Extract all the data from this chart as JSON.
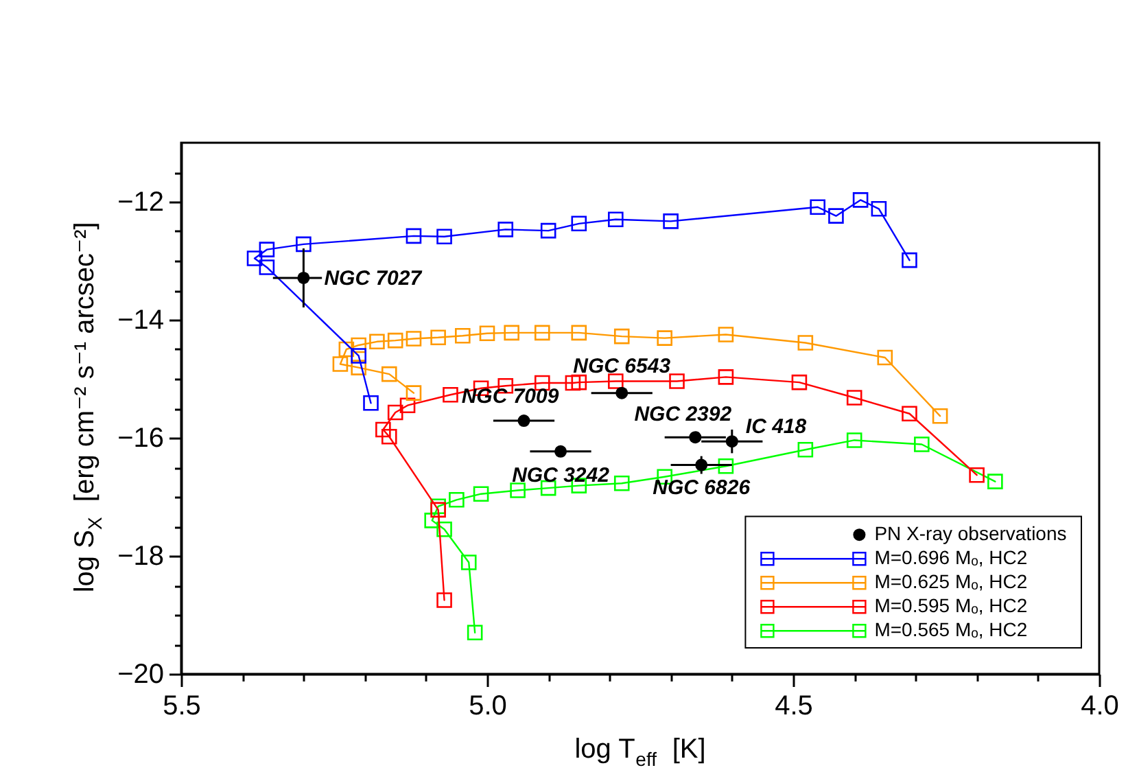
{
  "chart_data": {
    "type": "line",
    "xlabel": "log T$_{eff}$  [K]",
    "ylabel": "log S$_{X}$  [erg cm⁻² s⁻¹ arcsec⁻²]",
    "xlim": [
      5.5,
      4.0
    ],
    "ylim": [
      -20,
      -11
    ],
    "xticks": [
      5.5,
      {
        "value": 5.4,
        "label": null
      },
      {
        "value": 5.3,
        "label": null
      },
      {
        "value": 5.2,
        "label": null
      },
      {
        "value": 5.1,
        "label": null
      },
      {
        "value": 5,
        "label": "5.0"
      },
      {
        "value": 4.9,
        "label": null
      },
      {
        "value": 4.8,
        "label": null
      },
      {
        "value": 4.7,
        "label": null
      },
      {
        "value": 4.6,
        "label": null
      },
      4.5,
      {
        "value": 4.4,
        "label": null
      },
      {
        "value": 4.3,
        "label": null
      },
      {
        "value": 4.2,
        "label": null
      },
      {
        "value": 4.1,
        "label": null
      },
      {
        "value": 4,
        "label": "4.0"
      }
    ],
    "yticks": [
      -20,
      {
        "value": -19.5,
        "label": null
      },
      {
        "value": -19,
        "label": null
      },
      {
        "value": -18.5,
        "label": null
      },
      -18,
      {
        "value": -17.5,
        "label": null
      },
      {
        "value": -17,
        "label": null
      },
      {
        "value": -16.5,
        "label": null
      },
      -16,
      {
        "value": -15.5,
        "label": null
      },
      {
        "value": -15,
        "label": null
      },
      {
        "value": -14.5,
        "label": null
      },
      -14,
      {
        "value": -13.5,
        "label": null
      },
      {
        "value": -13,
        "label": null
      },
      {
        "value": -12.5,
        "label": null
      },
      -12,
      {
        "value": -11.5,
        "label": null
      }
    ],
    "legend": "bottom right",
    "series": [
      {
        "name": "PN X-ray observations",
        "type": "scatter",
        "marker": "circle",
        "color": "#000000",
        "x": [
          5.3,
          4.94,
          4.78,
          4.66,
          4.6,
          4.88,
          4.65
        ],
        "values": [
          -13.29,
          -15.71,
          -15.24,
          -15.99,
          -16.06,
          -16.23,
          -16.46
        ],
        "xerrors": [
          [
            5.27,
            5.35
          ],
          0.05,
          0.05,
          0.05,
          0.05,
          0.05,
          0.05
        ],
        "errors": [
          0.5,
          null,
          null,
          null,
          0.2,
          null,
          0.15
        ]
      },
      {
        "name": "M=0.696 Mₒ, HC2",
        "marker": "square",
        "color": "#0000ff",
        "x": [
          4.31,
          4.36,
          4.39,
          4.43,
          4.46,
          4.7,
          4.79,
          4.85,
          4.9,
          4.97,
          5.07,
          5.12,
          5.3,
          5.36,
          5.38,
          5.36,
          5.21,
          5.19
        ],
        "values": [
          -12.99,
          -12.12,
          -11.97,
          -12.24,
          -12.09,
          -12.33,
          -12.3,
          -12.37,
          -12.49,
          -12.47,
          -12.59,
          -12.58,
          -12.72,
          -12.81,
          -12.96,
          -13.11,
          -14.61,
          -15.41
        ]
      },
      {
        "name": "M=0.625 Mₒ, HC2",
        "marker": "square",
        "color": "#ff9900",
        "x": [
          4.26,
          4.35,
          4.48,
          4.61,
          4.71,
          4.78,
          4.85,
          4.91,
          4.96,
          5.0,
          5.04,
          5.08,
          5.12,
          5.15,
          5.18,
          5.21,
          5.23,
          5.24,
          5.21,
          5.16,
          5.12
        ],
        "values": [
          -15.63,
          -14.64,
          -14.39,
          -14.25,
          -14.31,
          -14.28,
          -14.22,
          -14.22,
          -14.22,
          -14.23,
          -14.27,
          -14.3,
          -14.32,
          -14.35,
          -14.37,
          -14.43,
          -14.5,
          -14.75,
          -14.81,
          -14.92,
          -15.24
        ]
      },
      {
        "name": "M=0.595 Mₒ, HC2",
        "marker": "square",
        "color": "#ff0000",
        "x": [
          4.2,
          4.31,
          4.4,
          4.49,
          4.61,
          4.69,
          4.79,
          4.85,
          4.86,
          4.91,
          4.97,
          5.01,
          5.06,
          5.13,
          5.15,
          5.17,
          5.16,
          5.08,
          5.07
        ],
        "values": [
          -16.63,
          -15.59,
          -15.32,
          -15.06,
          -14.97,
          -15.04,
          -15.04,
          -15.06,
          -15.07,
          -15.07,
          -15.12,
          -15.16,
          -15.27,
          -15.45,
          -15.57,
          -15.86,
          -15.98,
          -17.22,
          -18.75
        ]
      },
      {
        "name": "M=0.565 Mₒ, HC2",
        "marker": "square",
        "color": "#00ff00",
        "x": [
          4.17,
          4.29,
          4.4,
          4.48,
          4.61,
          4.71,
          4.78,
          4.85,
          4.9,
          4.95,
          5.01,
          5.05,
          5.08,
          5.09,
          5.07,
          5.03,
          5.02
        ],
        "values": [
          -16.74,
          -16.11,
          -16.04,
          -16.2,
          -16.48,
          -16.66,
          -16.77,
          -16.81,
          -16.85,
          -16.89,
          -16.95,
          -17.05,
          -17.16,
          -17.4,
          -17.55,
          -18.11,
          -19.3
        ]
      }
    ],
    "annotations": [
      {
        "text": "NGC 7027",
        "x": 5.3,
        "y": -13.29
      },
      {
        "text": "NGC 7009",
        "x": 4.94,
        "y": -15.71
      },
      {
        "text": "NGC 6543",
        "x": 4.78,
        "y": -15.24
      },
      {
        "text": "NGC 2392",
        "x": 4.66,
        "y": -15.99
      },
      {
        "text": "IC 418",
        "x": 4.6,
        "y": -16.06
      },
      {
        "text": "NGC 3242",
        "x": 4.88,
        "y": -16.23
      },
      {
        "text": "NGC 6826",
        "x": 4.65,
        "y": -16.46
      }
    ]
  }
}
